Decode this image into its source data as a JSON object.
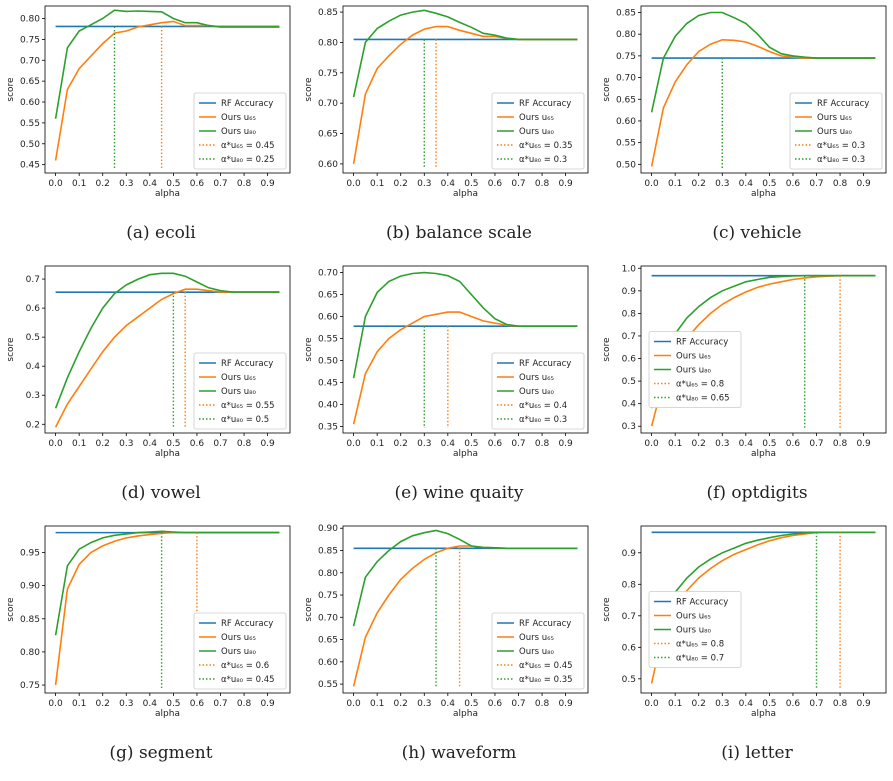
{
  "figure": {
    "colors": {
      "rf": "#1f77b4",
      "u65": "#ff7f0e",
      "u80": "#2ca02c"
    },
    "legend_labels": [
      "RF Accuracy",
      "Ours u₆₅",
      "Ours u₈₀",
      "α*u₆₅ = ",
      "α*u₈₀ = "
    ]
  },
  "chart_data": [
    {
      "type": "line",
      "caption": "(a) ecoli",
      "xlabel": "alpha",
      "ylabel": "score",
      "x": [
        0.0,
        0.05,
        0.1,
        0.15,
        0.2,
        0.25,
        0.3,
        0.35,
        0.4,
        0.45,
        0.5,
        0.55,
        0.6,
        0.65,
        0.7,
        0.75,
        0.8,
        0.85,
        0.9,
        0.95
      ],
      "xticks": [
        "0.0",
        "0.1",
        "0.2",
        "0.3",
        "0.4",
        "0.5",
        "0.6",
        "0.7",
        "0.8",
        "0.9"
      ],
      "yticks": [
        0.45,
        0.5,
        0.55,
        0.6,
        0.65,
        0.7,
        0.75,
        0.8
      ],
      "ytick_labels": [
        "0.45",
        "0.50",
        "0.55",
        "0.60",
        "0.65",
        "0.70",
        "0.75",
        "0.80"
      ],
      "ylim": [
        0.43,
        0.83
      ],
      "rf": 0.781,
      "series": [
        {
          "name": "Ours u65",
          "values": [
            0.46,
            0.63,
            0.68,
            0.71,
            0.74,
            0.765,
            0.77,
            0.78,
            0.785,
            0.79,
            0.793,
            0.783,
            0.783,
            0.783,
            0.78,
            0.78,
            0.78,
            0.78,
            0.78,
            0.78
          ]
        },
        {
          "name": "Ours u80",
          "values": [
            0.56,
            0.73,
            0.77,
            0.785,
            0.8,
            0.82,
            0.817,
            0.818,
            0.817,
            0.816,
            0.8,
            0.79,
            0.79,
            0.783,
            0.78,
            0.78,
            0.78,
            0.78,
            0.78,
            0.78
          ]
        }
      ],
      "alpha_u65": 0.45,
      "alpha_u80": 0.25,
      "legend": "lower-right"
    },
    {
      "type": "line",
      "caption": "(b) balance scale",
      "xlabel": "alpha",
      "ylabel": "score",
      "x": [
        0.0,
        0.05,
        0.1,
        0.15,
        0.2,
        0.25,
        0.3,
        0.35,
        0.4,
        0.45,
        0.5,
        0.55,
        0.6,
        0.65,
        0.7,
        0.75,
        0.8,
        0.85,
        0.9,
        0.95
      ],
      "xticks": [
        "0.0",
        "0.1",
        "0.2",
        "0.3",
        "0.4",
        "0.5",
        "0.6",
        "0.7",
        "0.8",
        "0.9"
      ],
      "yticks": [
        0.6,
        0.65,
        0.7,
        0.75,
        0.8,
        0.85
      ],
      "ytick_labels": [
        "0.60",
        "0.65",
        "0.70",
        "0.75",
        "0.80",
        "0.85"
      ],
      "ylim": [
        0.585,
        0.86
      ],
      "rf": 0.805,
      "series": [
        {
          "name": "Ours u65",
          "values": [
            0.6,
            0.715,
            0.757,
            0.778,
            0.797,
            0.812,
            0.822,
            0.826,
            0.826,
            0.82,
            0.815,
            0.81,
            0.81,
            0.807,
            0.805,
            0.805,
            0.805,
            0.805,
            0.805,
            0.805
          ]
        },
        {
          "name": "Ours u80",
          "values": [
            0.71,
            0.8,
            0.823,
            0.835,
            0.845,
            0.85,
            0.853,
            0.848,
            0.842,
            0.833,
            0.825,
            0.815,
            0.812,
            0.807,
            0.805,
            0.805,
            0.805,
            0.805,
            0.805,
            0.805
          ]
        }
      ],
      "alpha_u65": 0.35,
      "alpha_u80": 0.3,
      "legend": "lower-right"
    },
    {
      "type": "line",
      "caption": "(c) vehicle",
      "xlabel": "alpha",
      "ylabel": "score",
      "x": [
        0.0,
        0.05,
        0.1,
        0.15,
        0.2,
        0.25,
        0.3,
        0.35,
        0.4,
        0.45,
        0.5,
        0.55,
        0.6,
        0.65,
        0.7,
        0.75,
        0.8,
        0.85,
        0.9,
        0.95
      ],
      "xticks": [
        "0.0",
        "0.1",
        "0.2",
        "0.3",
        "0.4",
        "0.5",
        "0.6",
        "0.7",
        "0.8",
        "0.9"
      ],
      "yticks": [
        0.5,
        0.55,
        0.6,
        0.65,
        0.7,
        0.75,
        0.8,
        0.85
      ],
      "ytick_labels": [
        "0.50",
        "0.55",
        "0.60",
        "0.65",
        "0.70",
        "0.75",
        "0.80",
        "0.85"
      ],
      "ylim": [
        0.48,
        0.865
      ],
      "rf": 0.745,
      "series": [
        {
          "name": "Ours u65",
          "values": [
            0.495,
            0.63,
            0.69,
            0.73,
            0.76,
            0.777,
            0.787,
            0.786,
            0.782,
            0.772,
            0.76,
            0.75,
            0.747,
            0.745,
            0.745,
            0.745,
            0.745,
            0.745,
            0.745,
            0.745
          ]
        },
        {
          "name": "Ours u80",
          "values": [
            0.62,
            0.745,
            0.795,
            0.825,
            0.843,
            0.85,
            0.85,
            0.838,
            0.825,
            0.8,
            0.77,
            0.755,
            0.75,
            0.747,
            0.745,
            0.745,
            0.745,
            0.745,
            0.745,
            0.745
          ]
        }
      ],
      "alpha_u65": 0.3,
      "alpha_u80": 0.3,
      "legend": "lower-right"
    },
    {
      "type": "line",
      "caption": "(d) vowel",
      "xlabel": "alpha",
      "ylabel": "score",
      "x": [
        0.0,
        0.05,
        0.1,
        0.15,
        0.2,
        0.25,
        0.3,
        0.35,
        0.4,
        0.45,
        0.5,
        0.55,
        0.6,
        0.65,
        0.7,
        0.75,
        0.8,
        0.85,
        0.9,
        0.95
      ],
      "xticks": [
        "0.0",
        "0.1",
        "0.2",
        "0.3",
        "0.4",
        "0.5",
        "0.6",
        "0.7",
        "0.8",
        "0.9"
      ],
      "yticks": [
        0.2,
        0.3,
        0.4,
        0.5,
        0.6,
        0.7
      ],
      "ytick_labels": [
        "0.2",
        "0.3",
        "0.4",
        "0.5",
        "0.6",
        "0.7"
      ],
      "ylim": [
        0.17,
        0.745
      ],
      "rf": 0.655,
      "series": [
        {
          "name": "Ours u65",
          "values": [
            0.19,
            0.27,
            0.33,
            0.39,
            0.45,
            0.5,
            0.54,
            0.57,
            0.6,
            0.63,
            0.65,
            0.665,
            0.665,
            0.66,
            0.655,
            0.655,
            0.655,
            0.655,
            0.655,
            0.655
          ]
        },
        {
          "name": "Ours u80",
          "values": [
            0.255,
            0.36,
            0.45,
            0.53,
            0.6,
            0.65,
            0.68,
            0.7,
            0.715,
            0.72,
            0.72,
            0.71,
            0.69,
            0.67,
            0.66,
            0.655,
            0.655,
            0.655,
            0.655,
            0.655
          ]
        }
      ],
      "alpha_u65": 0.55,
      "alpha_u80": 0.5,
      "legend": "lower-right"
    },
    {
      "type": "line",
      "caption": "(e) wine quaity",
      "xlabel": "alpha",
      "ylabel": "score",
      "x": [
        0.0,
        0.05,
        0.1,
        0.15,
        0.2,
        0.25,
        0.3,
        0.35,
        0.4,
        0.45,
        0.5,
        0.55,
        0.6,
        0.65,
        0.7,
        0.75,
        0.8,
        0.85,
        0.9,
        0.95
      ],
      "xticks": [
        "0.0",
        "0.1",
        "0.2",
        "0.3",
        "0.4",
        "0.5",
        "0.6",
        "0.7",
        "0.8",
        "0.9"
      ],
      "yticks": [
        0.35,
        0.4,
        0.45,
        0.5,
        0.55,
        0.6,
        0.65,
        0.7
      ],
      "ytick_labels": [
        "0.35",
        "0.40",
        "0.45",
        "0.50",
        "0.55",
        "0.60",
        "0.65",
        "0.70"
      ],
      "ylim": [
        0.335,
        0.715
      ],
      "rf": 0.578,
      "series": [
        {
          "name": "Ours u65",
          "values": [
            0.355,
            0.47,
            0.52,
            0.55,
            0.57,
            0.585,
            0.6,
            0.605,
            0.61,
            0.61,
            0.6,
            0.59,
            0.585,
            0.58,
            0.578,
            0.578,
            0.578,
            0.578,
            0.578,
            0.578
          ]
        },
        {
          "name": "Ours u80",
          "values": [
            0.46,
            0.6,
            0.655,
            0.68,
            0.692,
            0.698,
            0.7,
            0.698,
            0.693,
            0.68,
            0.65,
            0.62,
            0.595,
            0.582,
            0.578,
            0.578,
            0.578,
            0.578,
            0.578,
            0.578
          ]
        }
      ],
      "alpha_u65": 0.4,
      "alpha_u80": 0.3,
      "legend": "lower-right"
    },
    {
      "type": "line",
      "caption": "(f) optdigits",
      "xlabel": "alpha",
      "ylabel": "score",
      "x": [
        0.0,
        0.05,
        0.1,
        0.15,
        0.2,
        0.25,
        0.3,
        0.35,
        0.4,
        0.45,
        0.5,
        0.55,
        0.6,
        0.65,
        0.7,
        0.75,
        0.8,
        0.85,
        0.9,
        0.95
      ],
      "xticks": [
        "0.0",
        "0.1",
        "0.2",
        "0.3",
        "0.4",
        "0.5",
        "0.6",
        "0.7",
        "0.8",
        "0.9"
      ],
      "yticks": [
        0.3,
        0.4,
        0.5,
        0.6,
        0.7,
        0.8,
        0.9,
        1.0
      ],
      "ytick_labels": [
        "0.3",
        "0.4",
        "0.5",
        "0.6",
        "0.7",
        "0.8",
        "0.9",
        "1.0"
      ],
      "ylim": [
        0.27,
        1.01
      ],
      "rf": 0.967,
      "series": [
        {
          "name": "Ours u65",
          "values": [
            0.3,
            0.5,
            0.61,
            0.69,
            0.75,
            0.8,
            0.84,
            0.87,
            0.895,
            0.915,
            0.93,
            0.94,
            0.95,
            0.957,
            0.962,
            0.965,
            0.967,
            0.967,
            0.967,
            0.967
          ]
        },
        {
          "name": "Ours u80",
          "values": [
            0.38,
            0.6,
            0.71,
            0.78,
            0.83,
            0.87,
            0.9,
            0.92,
            0.94,
            0.95,
            0.96,
            0.963,
            0.966,
            0.967,
            0.967,
            0.967,
            0.967,
            0.967,
            0.967,
            0.967
          ]
        }
      ],
      "alpha_u65": 0.8,
      "alpha_u80": 0.65,
      "legend": "center-left"
    },
    {
      "type": "line",
      "caption": "(g) segment",
      "xlabel": "alpha",
      "ylabel": "score",
      "x": [
        0.0,
        0.05,
        0.1,
        0.15,
        0.2,
        0.25,
        0.3,
        0.35,
        0.4,
        0.45,
        0.5,
        0.55,
        0.6,
        0.65,
        0.7,
        0.75,
        0.8,
        0.85,
        0.9,
        0.95
      ],
      "xticks": [
        "0.0",
        "0.1",
        "0.2",
        "0.3",
        "0.4",
        "0.5",
        "0.6",
        "0.7",
        "0.8",
        "0.9"
      ],
      "yticks": [
        0.75,
        0.8,
        0.85,
        0.9,
        0.95
      ],
      "ytick_labels": [
        "0.75",
        "0.80",
        "0.85",
        "0.90",
        "0.95"
      ],
      "ylim": [
        0.738,
        0.99
      ],
      "rf": 0.98,
      "series": [
        {
          "name": "Ours u65",
          "values": [
            0.75,
            0.895,
            0.932,
            0.95,
            0.96,
            0.967,
            0.972,
            0.975,
            0.977,
            0.979,
            0.98,
            0.98,
            0.98,
            0.98,
            0.98,
            0.98,
            0.98,
            0.98,
            0.98,
            0.98
          ]
        },
        {
          "name": "Ours u80",
          "values": [
            0.825,
            0.93,
            0.955,
            0.965,
            0.972,
            0.976,
            0.978,
            0.98,
            0.981,
            0.982,
            0.981,
            0.98,
            0.98,
            0.98,
            0.98,
            0.98,
            0.98,
            0.98,
            0.98,
            0.98
          ]
        }
      ],
      "alpha_u65": 0.6,
      "alpha_u80": 0.45,
      "legend": "lower-right"
    },
    {
      "type": "line",
      "caption": "(h) waveform",
      "xlabel": "alpha",
      "ylabel": "score",
      "x": [
        0.0,
        0.05,
        0.1,
        0.15,
        0.2,
        0.25,
        0.3,
        0.35,
        0.4,
        0.45,
        0.5,
        0.55,
        0.6,
        0.65,
        0.7,
        0.75,
        0.8,
        0.85,
        0.9,
        0.95
      ],
      "xticks": [
        "0.0",
        "0.1",
        "0.2",
        "0.3",
        "0.4",
        "0.5",
        "0.6",
        "0.7",
        "0.8",
        "0.9"
      ],
      "yticks": [
        0.55,
        0.6,
        0.65,
        0.7,
        0.75,
        0.8,
        0.85,
        0.9
      ],
      "ytick_labels": [
        "0.55",
        "0.60",
        "0.65",
        "0.70",
        "0.75",
        "0.80",
        "0.85",
        "0.90"
      ],
      "ylim": [
        0.53,
        0.905
      ],
      "rf": 0.855,
      "series": [
        {
          "name": "Ours u65",
          "values": [
            0.545,
            0.655,
            0.71,
            0.75,
            0.785,
            0.81,
            0.83,
            0.845,
            0.855,
            0.86,
            0.86,
            0.857,
            0.856,
            0.855,
            0.855,
            0.855,
            0.855,
            0.855,
            0.855,
            0.855
          ]
        },
        {
          "name": "Ours u80",
          "values": [
            0.68,
            0.79,
            0.825,
            0.85,
            0.87,
            0.883,
            0.89,
            0.895,
            0.888,
            0.875,
            0.86,
            0.857,
            0.856,
            0.855,
            0.855,
            0.855,
            0.855,
            0.855,
            0.855,
            0.855
          ]
        }
      ],
      "alpha_u65": 0.45,
      "alpha_u80": 0.35,
      "legend": "lower-right"
    },
    {
      "type": "line",
      "caption": "(i) letter",
      "xlabel": "alpha",
      "ylabel": "score",
      "x": [
        0.0,
        0.05,
        0.1,
        0.15,
        0.2,
        0.25,
        0.3,
        0.35,
        0.4,
        0.45,
        0.5,
        0.55,
        0.6,
        0.65,
        0.7,
        0.75,
        0.8,
        0.85,
        0.9,
        0.95
      ],
      "xticks": [
        "0.0",
        "0.1",
        "0.2",
        "0.3",
        "0.4",
        "0.5",
        "0.6",
        "0.7",
        "0.8",
        "0.9"
      ],
      "yticks": [
        0.5,
        0.6,
        0.7,
        0.8,
        0.9
      ],
      "ytick_labels": [
        "0.5",
        "0.6",
        "0.7",
        "0.8",
        "0.9"
      ],
      "ylim": [
        0.455,
        0.985
      ],
      "rf": 0.965,
      "series": [
        {
          "name": "Ours u65",
          "values": [
            0.485,
            0.655,
            0.73,
            0.78,
            0.82,
            0.85,
            0.875,
            0.895,
            0.91,
            0.925,
            0.938,
            0.948,
            0.955,
            0.96,
            0.964,
            0.965,
            0.965,
            0.965,
            0.965,
            0.965
          ]
        },
        {
          "name": "Ours u80",
          "values": [
            0.54,
            0.7,
            0.775,
            0.82,
            0.855,
            0.88,
            0.9,
            0.915,
            0.93,
            0.94,
            0.948,
            0.955,
            0.96,
            0.963,
            0.965,
            0.965,
            0.965,
            0.965,
            0.965,
            0.965
          ]
        }
      ],
      "alpha_u65": 0.8,
      "alpha_u80": 0.7,
      "legend": "center-left"
    }
  ]
}
